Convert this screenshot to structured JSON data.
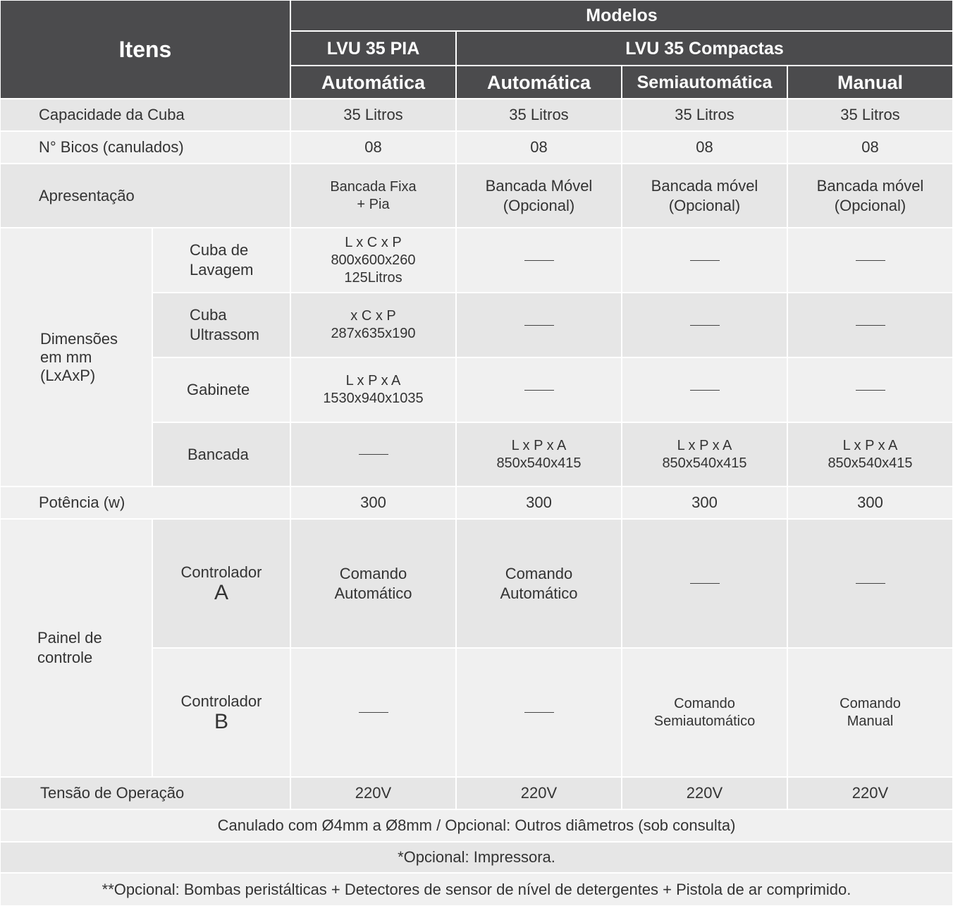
{
  "header": {
    "items": "Itens",
    "models": "Modelos",
    "group_pia": "LVU 35 PIA",
    "group_compactas": "LVU 35 Compactas",
    "types": [
      "Automática",
      "Automática",
      "Semiautomática",
      "Manual"
    ]
  },
  "rows": {
    "capacidade": {
      "label": "Capacidade da Cuba",
      "values": [
        "35 Litros",
        "35 Litros",
        "35 Litros",
        "35 Litros"
      ]
    },
    "bicos": {
      "label": "N° Bicos (canulados)",
      "values": [
        "08",
        "08",
        "08",
        "08"
      ]
    },
    "apresentacao": {
      "label": "Apresentação",
      "values": [
        [
          "Bancada Fixa",
          "+ Pia"
        ],
        [
          "Bancada Móvel",
          "(Opcional)"
        ],
        [
          "Bancada móvel",
          "(Opcional)"
        ],
        [
          "Bancada móvel",
          "(Opcional)"
        ]
      ]
    },
    "dimensoes": {
      "label": [
        "Dimensões",
        "em mm",
        "(LxAxP)"
      ],
      "cuba_lavagem": {
        "label": [
          "Cuba de",
          "Lavagem"
        ],
        "pia": [
          "L x C x P",
          "800x600x260",
          "125Litros"
        ]
      },
      "cuba_ultrassom": {
        "label": [
          "Cuba",
          "Ultrassom"
        ],
        "pia": [
          "x C x P",
          "287x635x190"
        ]
      },
      "gabinete": {
        "label": "Gabinete",
        "pia": [
          "L x P x A",
          "1530x940x1035"
        ]
      },
      "bancada": {
        "label": "Bancada",
        "compactas": [
          "L x P x A",
          "850x540x415"
        ]
      }
    },
    "potencia": {
      "label": "Potência (w)",
      "values": [
        "300",
        "300",
        "300",
        "300"
      ]
    },
    "painel": {
      "label": [
        "Painel de",
        "controle"
      ],
      "controlador_a": {
        "label": "Controlador",
        "letter": "A",
        "values": [
          [
            "Comando",
            "Automático"
          ],
          [
            "Comando",
            "Automático"
          ]
        ]
      },
      "controlador_b": {
        "label": "Controlador",
        "letter": "B",
        "values": [
          [
            "Comando",
            "Semiautomático"
          ],
          [
            "Comando",
            "Manual"
          ]
        ]
      }
    },
    "tensao": {
      "label": "Tensão de Operação",
      "values": [
        "220V",
        "220V",
        "220V",
        "220V"
      ]
    }
  },
  "notes": [
    "Canulado com Ø4mm a Ø8mm / Opcional: Outros diâmetros (sob consulta)",
    "*Opcional: Impressora.",
    "**Opcional: Bombas peristálticas + Detectores de sensor de nível de detergentes + Pistola de ar comprimido."
  ]
}
